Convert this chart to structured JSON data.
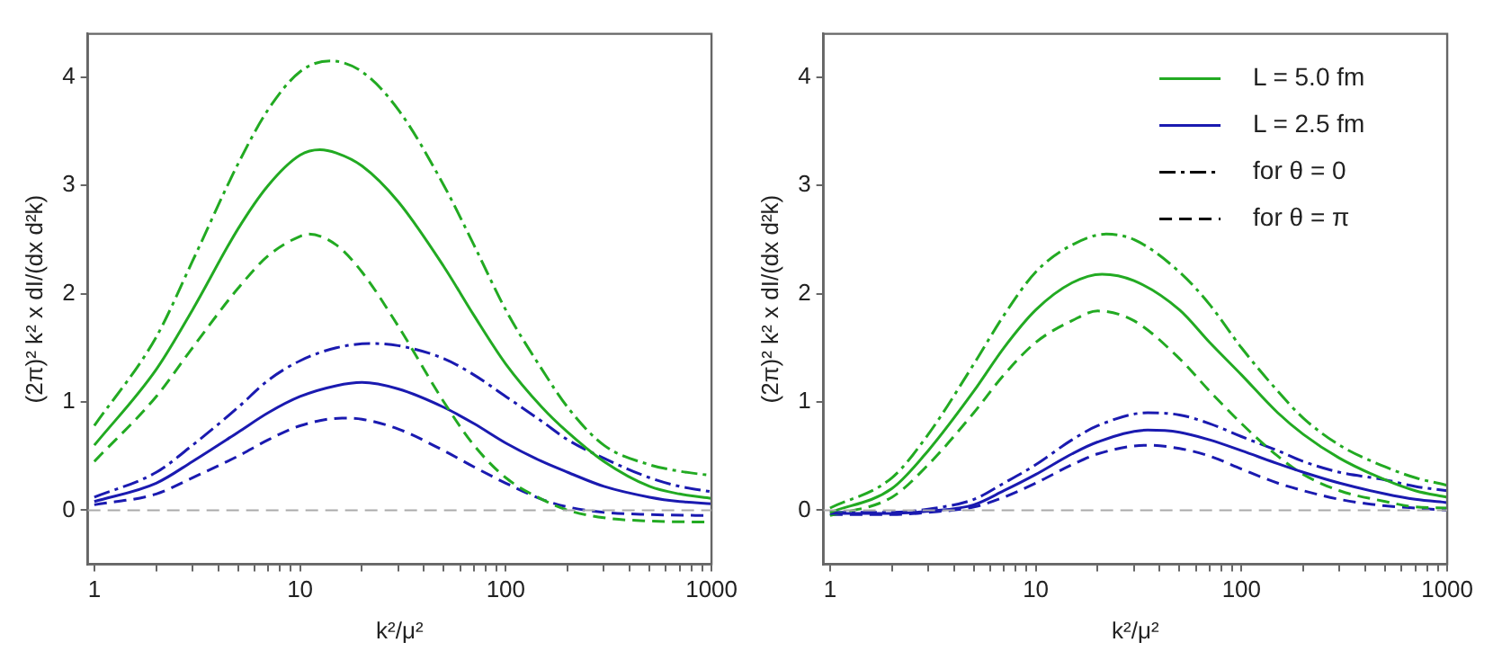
{
  "chart_data": [
    {
      "type": "line",
      "xlabel": "k²/μ²",
      "ylabel": "(2π)² k² x dI/(dx d²k)",
      "log": "x",
      "grid": false,
      "legend": false,
      "marker": "none",
      "xlim": [
        0.93,
        1000
      ],
      "ylim": [
        -0.5,
        4.4
      ],
      "xticks": [
        1,
        {
          "value": 2,
          "label": null
        },
        {
          "value": 3,
          "label": null
        },
        {
          "value": 4,
          "label": null
        },
        {
          "value": 5,
          "label": null
        },
        {
          "value": 6,
          "label": null
        },
        {
          "value": 7,
          "label": null
        },
        {
          "value": 8,
          "label": null
        },
        {
          "value": 9,
          "label": null
        },
        10,
        {
          "value": 20,
          "label": null
        },
        {
          "value": 30,
          "label": null
        },
        {
          "value": 40,
          "label": null
        },
        {
          "value": 50,
          "label": null
        },
        {
          "value": 60,
          "label": null
        },
        {
          "value": 70,
          "label": null
        },
        {
          "value": 80,
          "label": null
        },
        {
          "value": 90,
          "label": null
        },
        100,
        {
          "value": 200,
          "label": null
        },
        {
          "value": 300,
          "label": null
        },
        {
          "value": 400,
          "label": null
        },
        {
          "value": 500,
          "label": null
        },
        {
          "value": 600,
          "label": null
        },
        {
          "value": 700,
          "label": null
        },
        {
          "value": 800,
          "label": null
        },
        {
          "value": 900,
          "label": null
        },
        1000
      ],
      "yticks": [
        0,
        1,
        2,
        3,
        4
      ],
      "ref_lines": [
        {
          "axis": "y",
          "value": 0,
          "color": "#aaaaaa",
          "line_style": "dashed"
        }
      ],
      "series": [
        {
          "color": "#22aa22",
          "line_style": "dashdot",
          "x": [
            1,
            2,
            3,
            5,
            7,
            10,
            14,
            20,
            30,
            50,
            70,
            100,
            150,
            200,
            300,
            500,
            700,
            1000
          ],
          "values": [
            0.78,
            1.6,
            2.3,
            3.2,
            3.7,
            4.05,
            4.15,
            4.05,
            3.7,
            3.0,
            2.45,
            1.85,
            1.3,
            0.95,
            0.6,
            0.42,
            0.36,
            0.32
          ]
        },
        {
          "color": "#22aa22",
          "line_style": "solid",
          "x": [
            1,
            2,
            3,
            5,
            7,
            10,
            12.5,
            15,
            20,
            30,
            50,
            70,
            100,
            150,
            200,
            300,
            500,
            700,
            1000
          ],
          "values": [
            0.6,
            1.3,
            1.85,
            2.6,
            3.0,
            3.28,
            3.33,
            3.3,
            3.18,
            2.85,
            2.25,
            1.8,
            1.35,
            0.95,
            0.72,
            0.45,
            0.22,
            0.15,
            0.11
          ]
        },
        {
          "color": "#22aa22",
          "line_style": "dashed",
          "x": [
            1,
            2,
            3,
            5,
            7,
            10,
            11,
            15,
            20,
            30,
            50,
            70,
            100,
            150,
            200,
            300,
            500,
            1000
          ],
          "values": [
            0.45,
            1.05,
            1.5,
            2.05,
            2.35,
            2.53,
            2.55,
            2.45,
            2.2,
            1.7,
            1.0,
            0.6,
            0.3,
            0.1,
            0.0,
            -0.07,
            -0.1,
            -0.11
          ]
        },
        {
          "color": "#1a1ab0",
          "line_style": "dashdot",
          "x": [
            1,
            2,
            3,
            5,
            7,
            10,
            15,
            22,
            30,
            50,
            70,
            100,
            150,
            200,
            300,
            500,
            700,
            1000
          ],
          "values": [
            0.12,
            0.35,
            0.6,
            0.95,
            1.2,
            1.38,
            1.5,
            1.54,
            1.52,
            1.4,
            1.25,
            1.05,
            0.82,
            0.65,
            0.48,
            0.3,
            0.22,
            0.17
          ]
        },
        {
          "color": "#1a1ab0",
          "line_style": "solid",
          "x": [
            1,
            2,
            3,
            5,
            7,
            10,
            15,
            20,
            30,
            50,
            70,
            100,
            150,
            200,
            300,
            500,
            700,
            1000
          ],
          "values": [
            0.08,
            0.25,
            0.45,
            0.72,
            0.9,
            1.05,
            1.15,
            1.18,
            1.12,
            0.95,
            0.8,
            0.62,
            0.45,
            0.35,
            0.22,
            0.12,
            0.08,
            0.06
          ]
        },
        {
          "color": "#1a1ab0",
          "line_style": "dashed",
          "x": [
            1,
            2,
            3,
            5,
            7,
            10,
            16,
            20,
            30,
            50,
            70,
            100,
            150,
            200,
            300,
            500,
            1000
          ],
          "values": [
            0.05,
            0.15,
            0.3,
            0.5,
            0.65,
            0.78,
            0.85,
            0.84,
            0.75,
            0.55,
            0.4,
            0.25,
            0.1,
            0.03,
            -0.02,
            -0.04,
            -0.05
          ]
        }
      ]
    },
    {
      "type": "line",
      "xlabel": "k²/μ²",
      "ylabel": "(2π)² k² x dI/(dx d²k)",
      "log": "x",
      "grid": false,
      "legend": "top right",
      "marker": "none",
      "xlim": [
        0.93,
        1000
      ],
      "ylim": [
        -0.5,
        4.4
      ],
      "xticks": [
        1,
        {
          "value": 2,
          "label": null
        },
        {
          "value": 3,
          "label": null
        },
        {
          "value": 4,
          "label": null
        },
        {
          "value": 5,
          "label": null
        },
        {
          "value": 6,
          "label": null
        },
        {
          "value": 7,
          "label": null
        },
        {
          "value": 8,
          "label": null
        },
        {
          "value": 9,
          "label": null
        },
        10,
        {
          "value": 20,
          "label": null
        },
        {
          "value": 30,
          "label": null
        },
        {
          "value": 40,
          "label": null
        },
        {
          "value": 50,
          "label": null
        },
        {
          "value": 60,
          "label": null
        },
        {
          "value": 70,
          "label": null
        },
        {
          "value": 80,
          "label": null
        },
        {
          "value": 90,
          "label": null
        },
        100,
        {
          "value": 200,
          "label": null
        },
        {
          "value": 300,
          "label": null
        },
        {
          "value": 400,
          "label": null
        },
        {
          "value": 500,
          "label": null
        },
        {
          "value": 600,
          "label": null
        },
        {
          "value": 700,
          "label": null
        },
        {
          "value": 800,
          "label": null
        },
        {
          "value": 900,
          "label": null
        },
        1000
      ],
      "yticks": [
        0,
        1,
        2,
        3,
        4
      ],
      "ref_lines": [
        {
          "axis": "y",
          "value": 0,
          "color": "#aaaaaa",
          "line_style": "dashed"
        }
      ],
      "series": [
        {
          "name": "L = 5.0 fm",
          "color": "#22aa22",
          "line_style": "solid",
          "x": [
            1,
            2,
            3,
            5,
            7,
            10,
            15,
            21,
            30,
            50,
            70,
            100,
            150,
            200,
            300,
            500,
            700,
            1000
          ],
          "values": [
            -0.02,
            0.2,
            0.55,
            1.1,
            1.5,
            1.85,
            2.1,
            2.18,
            2.12,
            1.85,
            1.55,
            1.25,
            0.9,
            0.7,
            0.48,
            0.28,
            0.18,
            0.12
          ]
        },
        {
          "name": "L = 2.5 fm",
          "color": "#1a1ab0",
          "line_style": "solid",
          "x": [
            1,
            2,
            3,
            5,
            7,
            10,
            15,
            20,
            35,
            50,
            70,
            100,
            150,
            200,
            300,
            500,
            700,
            1000
          ],
          "values": [
            -0.03,
            -0.03,
            -0.01,
            0.05,
            0.18,
            0.33,
            0.52,
            0.63,
            0.74,
            0.72,
            0.65,
            0.55,
            0.43,
            0.35,
            0.25,
            0.15,
            0.1,
            0.07
          ]
        },
        {
          "name": "for θ = 0",
          "color": "#000000",
          "line_style": "dashdot"
        },
        {
          "name": "for θ = π",
          "color": "#000000",
          "line_style": "dashed"
        },
        {
          "color": "#22aa22",
          "line_style": "dashdot",
          "x": [
            1,
            2,
            3,
            5,
            7,
            10,
            15,
            22,
            30,
            50,
            70,
            100,
            150,
            200,
            300,
            500,
            700,
            1000
          ],
          "values": [
            0.02,
            0.3,
            0.7,
            1.35,
            1.8,
            2.2,
            2.45,
            2.55,
            2.5,
            2.2,
            1.9,
            1.5,
            1.1,
            0.85,
            0.6,
            0.4,
            0.3,
            0.23
          ]
        },
        {
          "color": "#22aa22",
          "line_style": "dashed",
          "x": [
            1,
            2,
            3,
            5,
            7,
            10,
            15,
            20,
            30,
            50,
            70,
            100,
            150,
            200,
            300,
            500,
            700,
            1000
          ],
          "values": [
            -0.05,
            0.12,
            0.42,
            0.9,
            1.25,
            1.55,
            1.75,
            1.84,
            1.75,
            1.4,
            1.1,
            0.8,
            0.5,
            0.33,
            0.18,
            0.08,
            0.03,
            0.02
          ]
        },
        {
          "color": "#1a1ab0",
          "line_style": "dashdot",
          "x": [
            1,
            2,
            3,
            5,
            7,
            10,
            15,
            20,
            35,
            50,
            70,
            100,
            150,
            200,
            300,
            500,
            700,
            1000
          ],
          "values": [
            -0.02,
            -0.02,
            0.01,
            0.1,
            0.25,
            0.42,
            0.65,
            0.78,
            0.9,
            0.88,
            0.8,
            0.68,
            0.55,
            0.45,
            0.35,
            0.28,
            0.22,
            0.18
          ]
        },
        {
          "color": "#1a1ab0",
          "line_style": "dashed",
          "x": [
            1,
            2,
            3,
            5,
            7,
            10,
            15,
            20,
            35,
            50,
            70,
            100,
            150,
            200,
            300,
            500,
            700,
            1000
          ],
          "values": [
            -0.04,
            -0.04,
            -0.02,
            0.03,
            0.12,
            0.25,
            0.42,
            0.52,
            0.6,
            0.57,
            0.5,
            0.38,
            0.25,
            0.18,
            0.1,
            0.04,
            0.02,
            0.0
          ]
        }
      ]
    }
  ]
}
